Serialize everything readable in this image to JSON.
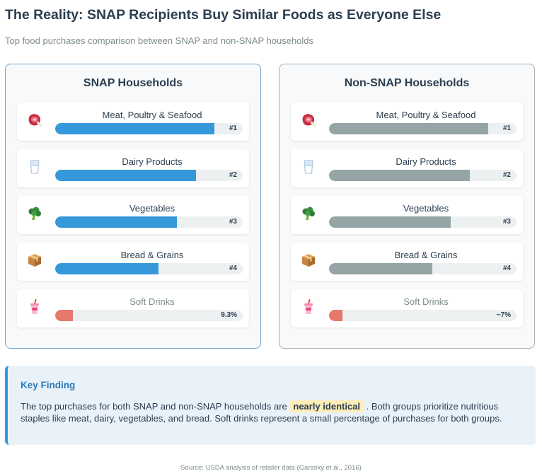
{
  "title": "The Reality: SNAP Recipients Buy Similar Foods as Everyone Else",
  "subtitle": "Top food purchases comparison between SNAP and non-SNAP households",
  "chart_data": [
    {
      "type": "bar",
      "title": "SNAP Households",
      "categories": [
        "Meat, Poultry & Seafood",
        "Dairy Products",
        "Vegetables",
        "Bread & Grains",
        "Soft Drinks"
      ],
      "value_labels": [
        "#1",
        "#2",
        "#3",
        "#4",
        "9.3%"
      ],
      "bar_levels": [
        0.85,
        0.75,
        0.65,
        0.55,
        0.093
      ],
      "icons": [
        "meat-icon",
        "glass-of-milk-icon",
        "broccoli-icon",
        "package-icon",
        "soft-drink-cup-icon"
      ],
      "bar_color": "#3498db",
      "highlight_color": "#e8786c"
    },
    {
      "type": "bar",
      "title": "Non-SNAP Households",
      "categories": [
        "Meat, Poultry & Seafood",
        "Dairy Products",
        "Vegetables",
        "Bread & Grains",
        "Soft Drinks"
      ],
      "value_labels": [
        "#1",
        "#2",
        "#3",
        "#4",
        "~7%"
      ],
      "bar_levels": [
        0.85,
        0.75,
        0.65,
        0.55,
        0.07
      ],
      "icons": [
        "meat-icon",
        "glass-of-milk-icon",
        "broccoli-icon",
        "package-icon",
        "soft-drink-cup-icon"
      ],
      "bar_color": "#95a5a6",
      "highlight_color": "#e8786c"
    }
  ],
  "finding": {
    "title": "Key Finding",
    "text_before": "The top purchases for both SNAP and non-SNAP households are",
    "highlight": "nearly identical",
    "text_after": ". Both groups prioritize nutritious staples like meat, dairy, vegetables, and bread. Soft drinks represent a small percentage of purchases for both groups."
  },
  "source": "Source: USDA analysis of retailer data (Garasky et al., 2016)"
}
